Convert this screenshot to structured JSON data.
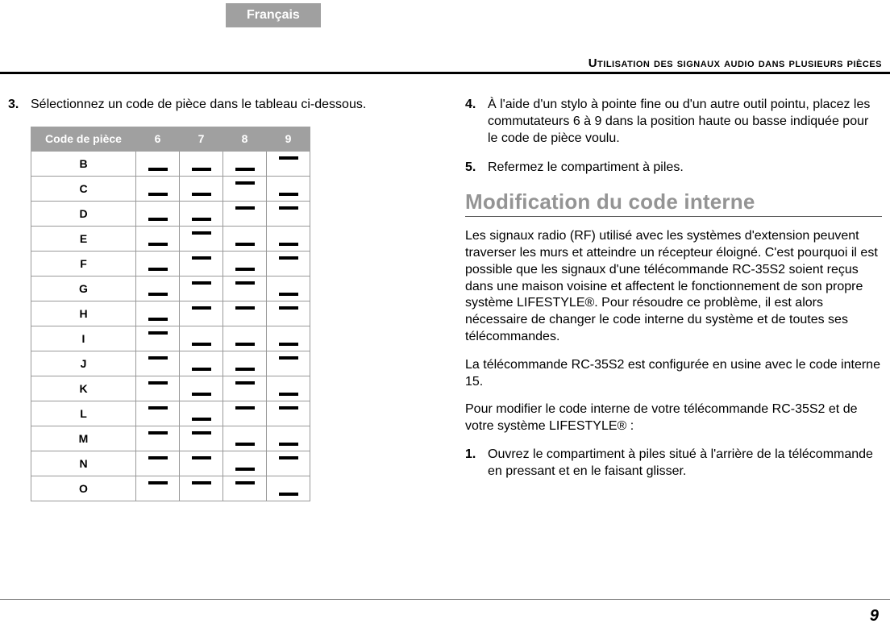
{
  "lang_tab": "Français",
  "section_heading": "Utilisation des signaux audio dans plusieurs pièces",
  "left": {
    "step3_num": "3.",
    "step3_text": "Sélectionnez un code de pièce dans le tableau ci-dessous.",
    "table": {
      "header": [
        "Code de pièce",
        "6",
        "7",
        "8",
        "9"
      ],
      "rows": [
        {
          "label": "B",
          "pos": [
            "low",
            "low",
            "low",
            "high"
          ]
        },
        {
          "label": "C",
          "pos": [
            "low",
            "low",
            "high",
            "low"
          ]
        },
        {
          "label": "D",
          "pos": [
            "low",
            "low",
            "high",
            "high"
          ]
        },
        {
          "label": "E",
          "pos": [
            "low",
            "high",
            "low",
            "low"
          ]
        },
        {
          "label": "F",
          "pos": [
            "low",
            "high",
            "low",
            "high"
          ]
        },
        {
          "label": "G",
          "pos": [
            "low",
            "high",
            "high",
            "low"
          ]
        },
        {
          "label": "H",
          "pos": [
            "low",
            "high",
            "high",
            "high"
          ]
        },
        {
          "label": "I",
          "pos": [
            "high",
            "low",
            "low",
            "low"
          ]
        },
        {
          "label": "J",
          "pos": [
            "high",
            "low",
            "low",
            "high"
          ]
        },
        {
          "label": "K",
          "pos": [
            "high",
            "low",
            "high",
            "low"
          ]
        },
        {
          "label": "L",
          "pos": [
            "high",
            "low",
            "high",
            "high"
          ]
        },
        {
          "label": "M",
          "pos": [
            "high",
            "high",
            "low",
            "low"
          ]
        },
        {
          "label": "N",
          "pos": [
            "high",
            "high",
            "low",
            "high"
          ]
        },
        {
          "label": "O",
          "pos": [
            "high",
            "high",
            "high",
            "low"
          ]
        }
      ]
    }
  },
  "right": {
    "step4_num": "4.",
    "step4_text": "À l'aide d'un stylo à pointe fine ou d'un autre outil pointu, placez les commutateurs 6 à 9 dans la position haute ou basse indiquée pour le code de pièce voulu.",
    "step5_num": "5.",
    "step5_text": "Refermez le compartiment à piles.",
    "h2": "Modification du code interne",
    "para1": "Les signaux radio (RF) utilisé avec les systèmes d'extension peuvent traverser les murs et atteindre un récepteur éloigné. C'est pourquoi il est possible que les signaux d'une télécommande RC-35S2 soient reçus dans une maison voisine et affectent le fonctionnement de son propre système LIFESTYLE®. Pour résoudre ce problème, il est alors nécessaire de changer le code interne du système et de toutes ses télécommandes.",
    "para2": "La télécommande RC-35S2 est configurée en usine avec le code interne 15.",
    "para3": "Pour modifier le code interne de votre télécommande RC-35S2 et de votre système LIFESTYLE® :",
    "step1_num": "1.",
    "step1_text": "Ouvrez le compartiment à piles situé à l'arrière de la télécommande en pressant et en le faisant glisser."
  },
  "page_num": "9",
  "colors": {
    "tab_bg": "#a0a0a0",
    "tab_fg": "#ffffff",
    "h2_color": "#949494"
  }
}
